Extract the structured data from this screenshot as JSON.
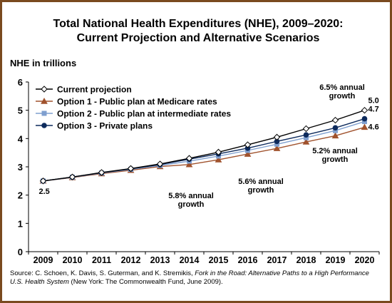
{
  "title_line1": "Total National Health Expenditures (NHE), 2009–2020:",
  "title_line2": "Current Projection and Alternative Scenarios",
  "source": {
    "prefix": "Source: C. Schoen, K. Davis, S. Guterman, and K. Stremikis, ",
    "italic": "Fork in the Road: Alternative Paths to a High Performance U.S. Health System",
    "suffix": " (New York: The Commonwealth Fund, June 2009)."
  },
  "colors": {
    "current": "#000000",
    "option1": "#a0522d",
    "option2": "#7f9fcf",
    "option3": "#0d2a5c",
    "frame": "#7a4a1f"
  },
  "chart_data": {
    "type": "line",
    "ylabel": "NHE in trillions",
    "ylim": [
      0,
      6
    ],
    "yticks": [
      "0",
      "1",
      "2",
      "3",
      "4",
      "5",
      "6"
    ],
    "x": [
      "2009",
      "2010",
      "2011",
      "2012",
      "2013",
      "2014",
      "2015",
      "2016",
      "2017",
      "2018",
      "2019",
      "2020"
    ],
    "grid": false,
    "legend_position": "top-left",
    "series": [
      {
        "name": "Current projection",
        "marker": "diamond-open",
        "values": [
          2.5,
          2.64,
          2.8,
          2.94,
          3.1,
          3.3,
          3.52,
          3.78,
          4.05,
          4.35,
          4.65,
          5.0
        ]
      },
      {
        "name": "Option 1 - Public plan at Medicare rates",
        "marker": "triangle",
        "values": [
          2.5,
          2.62,
          2.76,
          2.88,
          3.01,
          3.08,
          3.25,
          3.45,
          3.65,
          3.88,
          4.1,
          4.4
        ]
      },
      {
        "name": "Option 2 - Public plan at intermediate rates",
        "marker": "square",
        "values": [
          2.5,
          2.63,
          2.78,
          2.91,
          3.05,
          3.2,
          3.38,
          3.58,
          3.8,
          4.03,
          4.28,
          4.6
        ]
      },
      {
        "name": "Option 3 - Private plans",
        "marker": "circle",
        "values": [
          2.5,
          2.64,
          2.79,
          2.93,
          3.08,
          3.27,
          3.46,
          3.66,
          3.9,
          4.13,
          4.38,
          4.7
        ]
      }
    ],
    "data_labels": [
      "2.5",
      "5.0",
      "4.7",
      "4.6"
    ],
    "annotations": [
      {
        "line1": "6.5% annual",
        "line2": "growth"
      },
      {
        "line1": "5.2% annual",
        "line2": "growth"
      },
      {
        "line1": "5.8% annual",
        "line2": "growth"
      },
      {
        "line1": "5.6% annual",
        "line2": "growth"
      }
    ]
  }
}
